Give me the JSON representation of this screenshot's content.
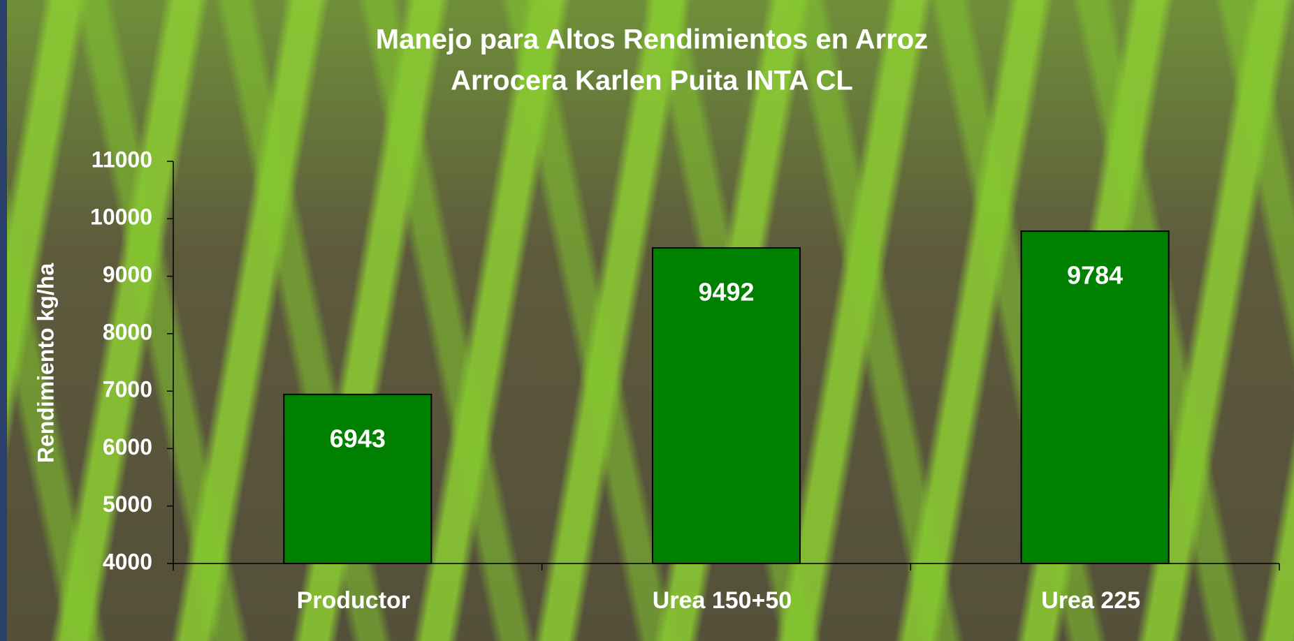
{
  "chart_data": {
    "type": "bar",
    "title": "Manejo para Altos Rendimientos en Arroz",
    "subtitle": "Arrocera Karlen Puita INTA CL",
    "y_label": "Rendimiento kg/ha",
    "categories": [
      "Productor",
      "Urea 150+50",
      "Urea 225"
    ],
    "values": [
      6943,
      9492,
      9784
    ],
    "color": "#008000",
    "ylim": [
      4000,
      11000
    ],
    "yticks": [
      4000,
      5000,
      6000,
      7000,
      8000,
      9000,
      10000,
      11000
    ],
    "grid": false
  }
}
